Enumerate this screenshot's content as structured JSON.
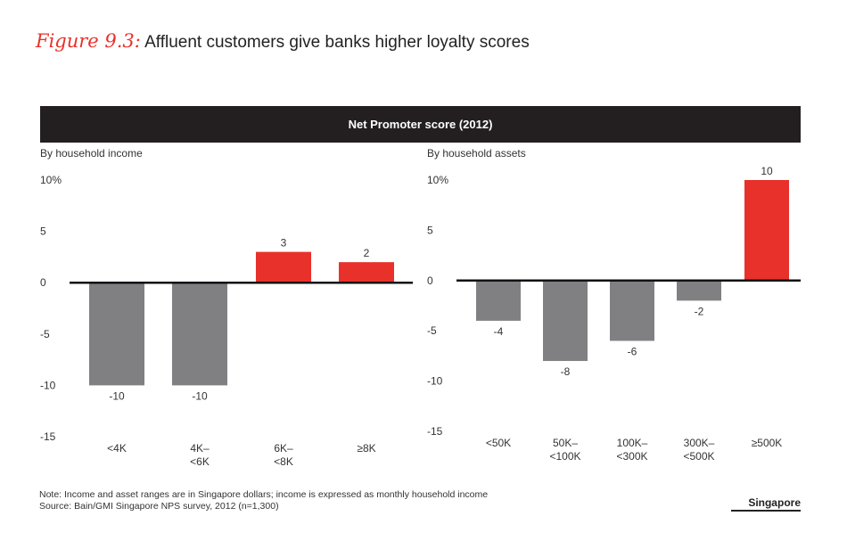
{
  "figure": {
    "number": "Figure 9.3:",
    "title": "Affluent customers give banks higher loyalty scores"
  },
  "header": {
    "label": "Net Promoter score (2012)"
  },
  "chart_data": [
    {
      "type": "bar",
      "panel_label": "By household income",
      "categories": [
        "<4K",
        "4K–\n<6K",
        "6K–\n<8K",
        "≥8K"
      ],
      "values": [
        -10,
        -10,
        3,
        2
      ],
      "data_labels": [
        "-10",
        "-10",
        "3",
        "2"
      ],
      "y_ticks": [
        "10%",
        "5",
        "0",
        "-5",
        "-10",
        "-15"
      ],
      "ylim": [
        -15,
        10
      ],
      "colors": {
        "negative": "#808083",
        "positive": "#e8312a"
      }
    },
    {
      "type": "bar",
      "panel_label": "By household assets",
      "categories": [
        "<50K",
        "50K–\n<100K",
        "100K–\n<300K",
        "300K–\n<500K",
        "≥500K"
      ],
      "values": [
        -4,
        -8,
        -6,
        -2,
        10
      ],
      "data_labels": [
        "-4",
        "-8",
        "-6",
        "-2",
        "10"
      ],
      "y_ticks": [
        "10%",
        "5",
        "0",
        "-5",
        "-10",
        "-15"
      ],
      "ylim": [
        -15,
        10
      ],
      "colors": {
        "negative": "#808083",
        "positive": "#e8312a"
      }
    }
  ],
  "footnote": {
    "note": "Note: Income and asset ranges are in Singapore dollars; income is expressed as monthly household income",
    "source": "Source: Bain/GMI Singapore NPS survey, 2012 (n=1,300)"
  },
  "region": "Singapore"
}
